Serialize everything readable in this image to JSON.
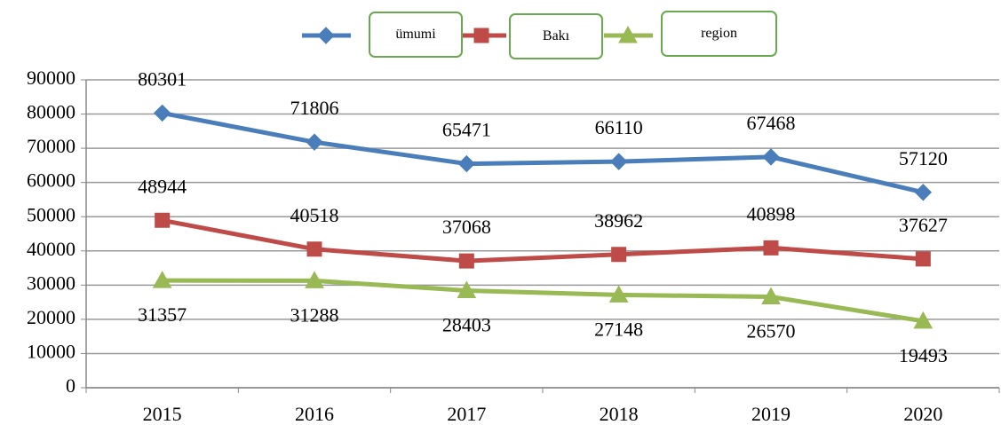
{
  "chart_data": {
    "type": "line",
    "categories": [
      "2015",
      "2016",
      "2017",
      "2018",
      "2019",
      "2020"
    ],
    "series": [
      {
        "name": "ümumi",
        "color": "#4a7ebb",
        "marker": "diamond",
        "label_position": "above",
        "values": [
          80301,
          71806,
          65471,
          66110,
          67468,
          57120
        ]
      },
      {
        "name": "Bakı",
        "color": "#be4b48",
        "marker": "square",
        "label_position": "above",
        "values": [
          48944,
          40518,
          37068,
          38962,
          40898,
          37627
        ]
      },
      {
        "name": "region",
        "color": "#98b954",
        "marker": "triangle",
        "label_position": "below",
        "values": [
          31357,
          31288,
          28403,
          27148,
          26570,
          19493
        ]
      }
    ],
    "ylim": [
      0,
      90000
    ],
    "yticks": [
      0,
      10000,
      20000,
      30000,
      40000,
      50000,
      60000,
      70000,
      80000,
      90000
    ],
    "grid": true,
    "legend": "top"
  }
}
